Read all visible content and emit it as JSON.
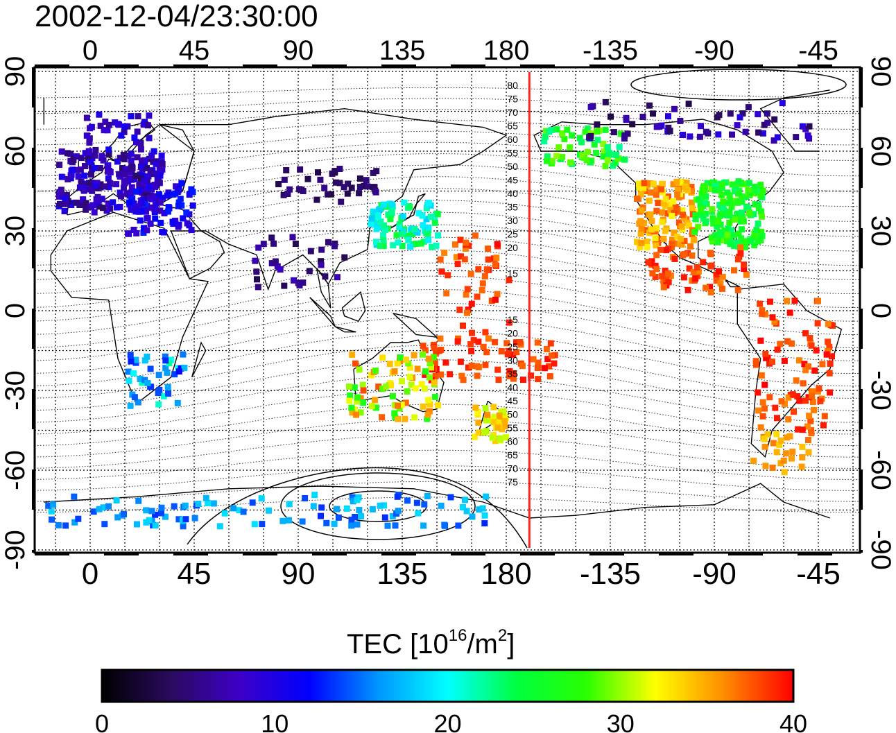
{
  "timestamp": "2002-12-04/23:30:00",
  "map": {
    "top_lon_ticks": [
      "0",
      "45",
      "90",
      "135",
      "180",
      "-135",
      "-90",
      "-45"
    ],
    "bottom_lon_ticks": [
      "0",
      "45",
      "90",
      "135",
      "180",
      "-135",
      "-90",
      "-45"
    ],
    "left_lat_ticks": [
      "90",
      "60",
      "30",
      "0",
      "-30",
      "-60",
      "-90"
    ],
    "right_lat_ticks": [
      "90",
      "60",
      "30",
      "0",
      "-30",
      "-60",
      "-90"
    ],
    "dip_labels_north": [
      "80",
      "75",
      "70",
      "65",
      "60",
      "55",
      "50",
      "45",
      "40",
      "35",
      "30",
      "25",
      "20",
      "15"
    ],
    "dip_labels_south": [
      "15",
      "20",
      "25",
      "30",
      "35",
      "40",
      "45",
      "50",
      "55",
      "60",
      "65",
      "70",
      "75"
    ],
    "meridian_marker_lon": -170,
    "marker_color": "#ff2020"
  },
  "colorbar": {
    "title_main": "TEC  [10",
    "title_exp1": "16",
    "title_mid": "/m",
    "title_exp2": "2",
    "title_end": "]",
    "tick_labels": [
      "0",
      "10",
      "20",
      "30",
      "40"
    ],
    "min": 0,
    "max": 40,
    "colors": [
      "#000000",
      "#2a0a5e",
      "#3c00c8",
      "#0000ff",
      "#0096ff",
      "#00ffff",
      "#00ff40",
      "#28ff00",
      "#ffff00",
      "#ff8c00",
      "#ff0000"
    ]
  }
}
